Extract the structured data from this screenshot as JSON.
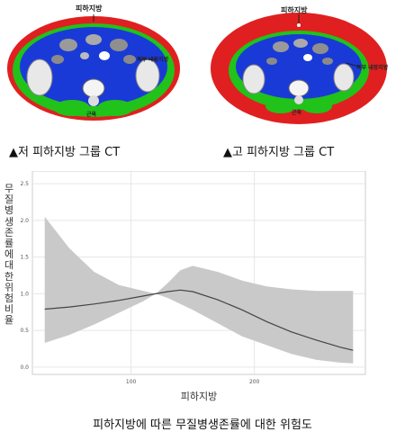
{
  "ct_left": {
    "fat_label": "피하지방",
    "visceral_label": "복부 내장지방",
    "muscle_label": "근육",
    "caption": "▲저 피하지방 그룹 CT"
  },
  "ct_right": {
    "fat_label": "피하지방",
    "visceral_label": "복부 내장지방",
    "muscle_label": "근육",
    "caption": "▲고 피하지방 그룹 CT"
  },
  "colors": {
    "subcutaneous_fat": "#e02020",
    "visceral_fat": "#1a3ad8",
    "muscle": "#21c21a",
    "band": "#c9c9c9",
    "line": "#444444",
    "grid": "#e6e6e6"
  },
  "chart_data": {
    "type": "line",
    "xlabel": "피하지방",
    "ylabel": "무질병생존률에 대한 위험 비율",
    "xlim": [
      20,
      290
    ],
    "ylim": [
      -0.05,
      2.6
    ],
    "x_ticks": [
      "100",
      "200"
    ],
    "y_ticks": [
      "0.0",
      "0.5",
      "1.0",
      "1.5",
      "2.0",
      "2.5"
    ],
    "grid": true,
    "series": [
      {
        "type": "line",
        "x": [
          30,
          50,
          70,
          90,
          110,
          120,
          130,
          140,
          150,
          170,
          190,
          210,
          230,
          250,
          270,
          280
        ],
        "y": [
          0.79,
          0.82,
          0.86,
          0.91,
          0.97,
          1.0,
          1.03,
          1.05,
          1.03,
          0.92,
          0.78,
          0.62,
          0.48,
          0.37,
          0.27,
          0.23
        ]
      },
      {
        "type": "band",
        "x": [
          30,
          50,
          70,
          90,
          110,
          120,
          130,
          140,
          150,
          170,
          190,
          210,
          230,
          250,
          270,
          280
        ],
        "lower": [
          0.33,
          0.44,
          0.58,
          0.74,
          0.9,
          1.0,
          0.94,
          0.86,
          0.78,
          0.6,
          0.42,
          0.3,
          0.18,
          0.1,
          0.06,
          0.05
        ],
        "upper": [
          2.05,
          1.62,
          1.3,
          1.12,
          1.04,
          1.0,
          1.15,
          1.32,
          1.38,
          1.3,
          1.18,
          1.1,
          1.06,
          1.04,
          1.04,
          1.04
        ]
      }
    ]
  },
  "bottom_caption": "피하지방에 따른 무질병생존률에 대한 위험도"
}
